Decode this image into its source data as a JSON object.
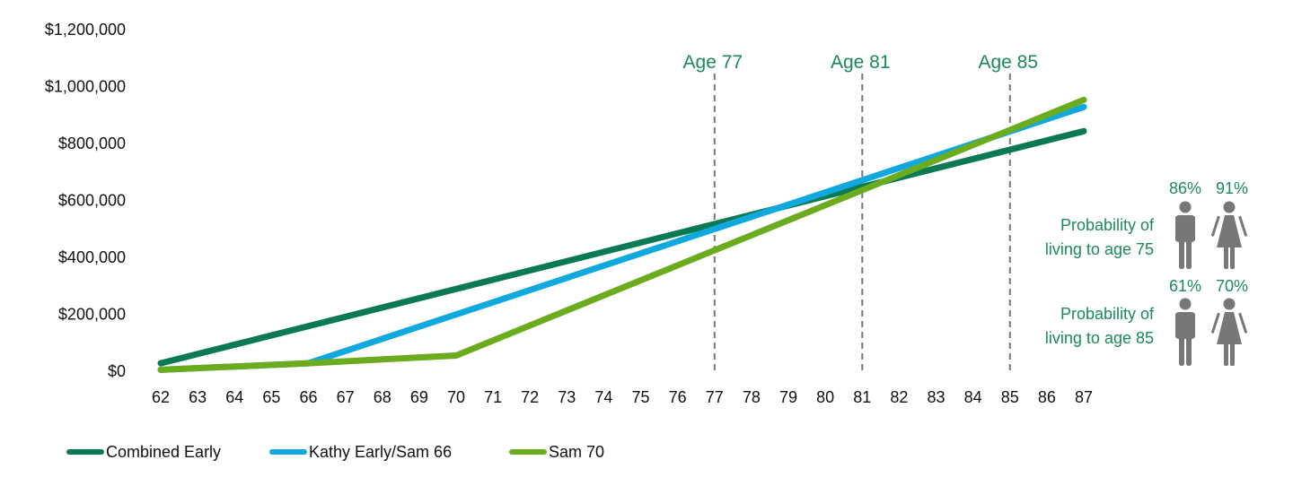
{
  "colors": {
    "combined": "#0b7a53",
    "kathy": "#10a9df",
    "sam70": "#6aac1e",
    "accent_text": "#1a8a5a",
    "marker_line": "#777777",
    "icon": "#777777"
  },
  "chart_data": {
    "type": "line",
    "x": [
      62,
      63,
      64,
      65,
      66,
      67,
      68,
      69,
      70,
      71,
      72,
      73,
      74,
      75,
      76,
      77,
      78,
      79,
      80,
      81,
      82,
      83,
      84,
      85,
      86,
      87
    ],
    "xlim": [
      62,
      87
    ],
    "ylim": [
      0,
      1200000
    ],
    "y_ticks": [
      {
        "value": 0,
        "label": "$0"
      },
      {
        "value": 200000,
        "label": "$200,000"
      },
      {
        "value": 400000,
        "label": "$400,000"
      },
      {
        "value": 600000,
        "label": "$600,000"
      },
      {
        "value": 800000,
        "label": "$800,000"
      },
      {
        "value": 1000000,
        "label": "$1,000,000"
      },
      {
        "value": 1200000,
        "label": "$1,200,000"
      }
    ],
    "x_tick_labels": [
      "62",
      "63",
      "64",
      "65",
      "66",
      "67",
      "68",
      "69",
      "70",
      "71",
      "72",
      "73",
      "74",
      "75",
      "76",
      "77",
      "78",
      "79",
      "80",
      "81",
      "82",
      "83",
      "84",
      "85",
      "86",
      "87"
    ],
    "series": [
      {
        "name": "Combined Early",
        "color_key": "combined",
        "points": [
          [
            62,
            25000
          ],
          [
            87,
            840000
          ]
        ]
      },
      {
        "name": "Kathy Early/Sam 66",
        "color_key": "kathy",
        "points": [
          [
            62,
            2000
          ],
          [
            66,
            25000
          ],
          [
            87,
            925000
          ]
        ]
      },
      {
        "name": "Sam 70",
        "color_key": "sam70",
        "points": [
          [
            62,
            2000
          ],
          [
            66,
            25000
          ],
          [
            70,
            52000
          ],
          [
            87,
            950000
          ]
        ]
      }
    ],
    "markers": [
      {
        "x": 77,
        "label": "Age 77"
      },
      {
        "x": 81,
        "label": "Age 81"
      },
      {
        "x": 85,
        "label": "Age 85"
      }
    ],
    "legend_position": "bottom-left"
  },
  "probabilities": [
    {
      "label_line1": "Probability of",
      "label_line2": "living to age 75",
      "male": "86%",
      "female": "91%"
    },
    {
      "label_line1": "Probability of",
      "label_line2": "living to age 85",
      "male": "61%",
      "female": "70%"
    }
  ]
}
